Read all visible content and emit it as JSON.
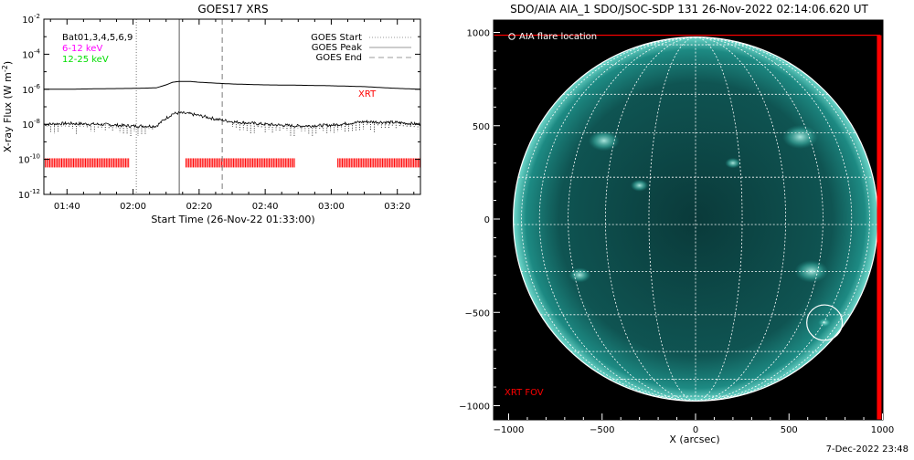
{
  "chart_data": [
    {
      "type": "line",
      "title": "GOES17 XRS",
      "xlabel": "Start Time (26-Nov-22 01:33:00)",
      "ylabel": "X-ray Flux (W m-2)",
      "ylabel_main": "X-ray Flux (W m",
      "ylabel_exp": "-2",
      "ylabel_close": ")",
      "y_scale": "log",
      "ylim_exp": [
        -12,
        -2
      ],
      "yticks": [
        {
          "label": "10",
          "exp": "-2",
          "value": -2
        },
        {
          "label": "10",
          "exp": "-4",
          "value": -4
        },
        {
          "label": "10",
          "exp": "-6",
          "value": -6
        },
        {
          "label": "10",
          "exp": "-8",
          "value": -8
        },
        {
          "label": "10",
          "exp": "-10",
          "value": -10
        },
        {
          "label": "10",
          "exp": "-12",
          "value": -12
        }
      ],
      "xlim_minutes": [
        93,
        207
      ],
      "xticks": [
        {
          "label": "01:40",
          "minutes": 100
        },
        {
          "label": "02:00",
          "minutes": 120
        },
        {
          "label": "02:20",
          "minutes": 140
        },
        {
          "label": "02:40",
          "minutes": 160
        },
        {
          "label": "03:00",
          "minutes": 180
        },
        {
          "label": "03:20",
          "minutes": 200
        }
      ],
      "top_left_labels": [
        {
          "text": "Bat01,3,4,5,6,9",
          "color": "#000000"
        },
        {
          "text": "6-12 keV",
          "color": "#ff00ff"
        },
        {
          "text": "12-25 keV",
          "color": "#00dd00"
        }
      ],
      "legend": {
        "placement": "top-right",
        "entries": [
          {
            "name": "GOES Start",
            "style": "dotted",
            "color": "#999999",
            "minutes": 121
          },
          {
            "name": "GOES Peak",
            "style": "solid",
            "color": "#999999",
            "minutes": 134
          },
          {
            "name": "GOES End",
            "style": "dashed",
            "color": "#999999",
            "minutes": 147
          }
        ]
      },
      "series": [
        {
          "name": "GOES long channel",
          "color": "#000000",
          "x": [
            93,
            100,
            110,
            120,
            127,
            130,
            132,
            134,
            137,
            140,
            145,
            150,
            160,
            170,
            180,
            190,
            200,
            207
          ],
          "y": [
            -6.0,
            -6.0,
            -5.97,
            -5.95,
            -5.92,
            -5.75,
            -5.6,
            -5.55,
            -5.55,
            -5.6,
            -5.65,
            -5.7,
            -5.75,
            -5.77,
            -5.8,
            -5.85,
            -5.95,
            -6.0
          ]
        },
        {
          "name": "GOES short channel",
          "color": "#000000",
          "style": "noisy",
          "x": [
            93,
            100,
            110,
            120,
            127,
            130,
            132,
            134,
            137,
            140,
            145,
            150,
            160,
            170,
            180,
            190,
            200,
            207
          ],
          "y": [
            -8.0,
            -7.95,
            -8.0,
            -8.1,
            -8.1,
            -7.65,
            -7.4,
            -7.35,
            -7.4,
            -7.5,
            -7.7,
            -7.85,
            -8.0,
            -8.1,
            -8.05,
            -7.85,
            -7.9,
            -8.0
          ]
        }
      ],
      "xrt_label": {
        "text": "XRT",
        "color": "#ff0000"
      },
      "xrt_coverage": {
        "color": "#ff0000",
        "y_exp": -10.2,
        "intervals_minutes": [
          [
            93,
            119
          ],
          [
            136,
            169
          ],
          [
            182,
            207
          ]
        ]
      }
    },
    {
      "type": "image",
      "title": "SDO/AIA AIA_1 SDO/JSOC-SDP 131 26-Nov-2022 02:14:06.620 UT",
      "xlabel": "X (arcsec)",
      "ylabel": "",
      "xlim": [
        -1100,
        1100
      ],
      "ylim": [
        -1100,
        1100
      ],
      "xticks": [
        -1000,
        -500,
        0,
        500,
        1000
      ],
      "yticks": [
        -1000,
        -500,
        0,
        500,
        1000
      ],
      "solar_radius_arcsec": 975,
      "colors": {
        "disk": "#0f5f5c",
        "limb": "#7fe6d6",
        "grid": "#ffffff"
      },
      "legend_entry": {
        "text": "AIA flare location",
        "marker": "circle"
      },
      "flare_location": {
        "x": 690,
        "y": -555,
        "radius_arcsec": 95
      },
      "xrt_fov": {
        "label": "XRT FOV",
        "color": "#ff0000",
        "x": [
          -1100,
          985
        ],
        "y": [
          -1100,
          985
        ]
      }
    }
  ],
  "footer_date": "7-Dec-2022 23:48"
}
